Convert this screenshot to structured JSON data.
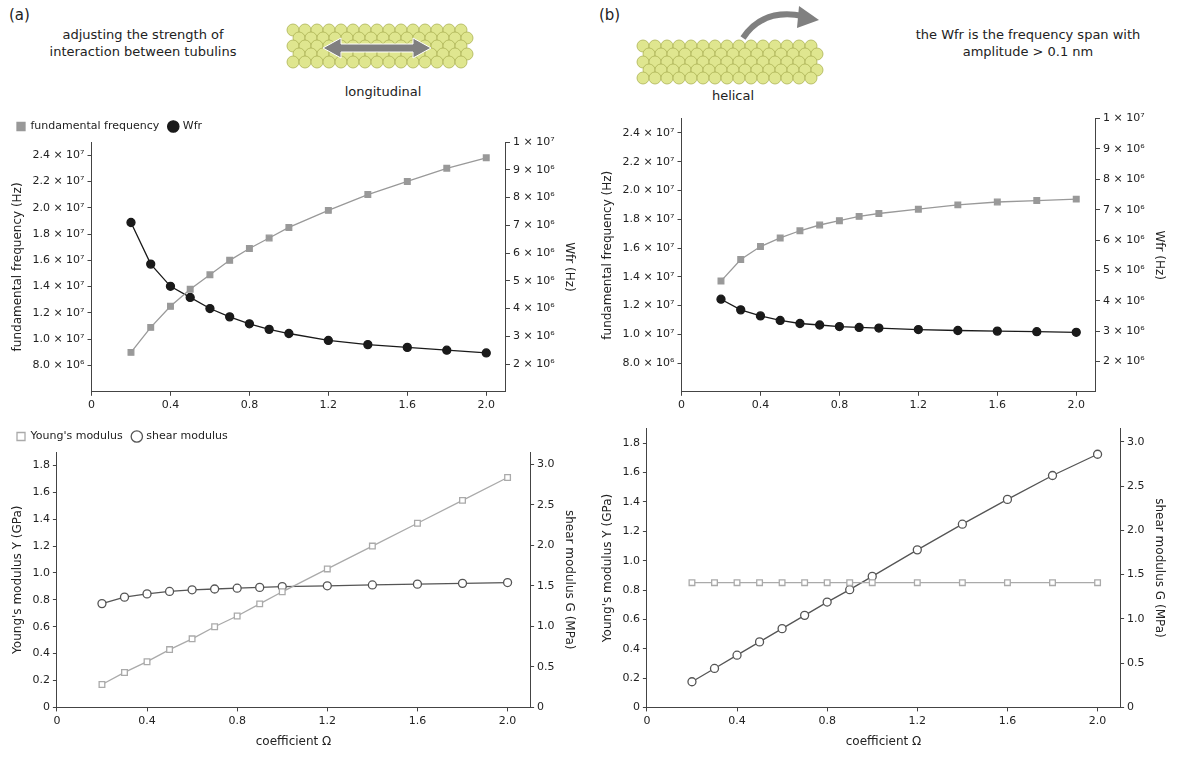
{
  "panels": [
    {
      "letter": "(a)",
      "caption": "adjusting the strength of interaction between tubulins",
      "label": "longitudinal"
    },
    {
      "letter": "(b)",
      "caption": "the Wfr is the frequency span with amplitude > 0.1 nm",
      "label": "helical"
    }
  ],
  "chart_data": [
    {
      "type": "line",
      "y_label": "fundamental frequency (Hz)",
      "y2_label": "Wfr (Hz)",
      "x": [
        0.2,
        0.3,
        0.4,
        0.5,
        0.6,
        0.7,
        0.8,
        0.9,
        1.0,
        1.2,
        1.4,
        1.6,
        1.8,
        2.0
      ],
      "xlim": [
        0,
        2.1
      ],
      "xticks": [
        0,
        0.4,
        0.8,
        1.2,
        1.6,
        {
          "value": 2,
          "label": "2.0"
        }
      ],
      "ylim": [
        6000000,
        25000000
      ],
      "yticks": [
        {
          "value": 8000000,
          "label": "8.0 × 10⁶"
        },
        {
          "value": 10000000,
          "label": "1.0 × 10⁷"
        },
        {
          "value": 12000000,
          "label": "1.2 × 10⁷"
        },
        {
          "value": 14000000,
          "label": "1.4 × 10⁷"
        },
        {
          "value": 16000000,
          "label": "1.6 × 10⁷"
        },
        {
          "value": 18000000,
          "label": "1.8 × 10⁷"
        },
        {
          "value": 20000000,
          "label": "2.0 × 10⁷"
        },
        {
          "value": 22000000,
          "label": "2.2 × 10⁷"
        },
        {
          "value": 24000000,
          "label": "2.4 × 10⁷"
        }
      ],
      "y2lim": [
        1000000,
        10000000
      ],
      "y2ticks": [
        {
          "value": 2000000,
          "label": "2 × 10⁶"
        },
        {
          "value": 3000000,
          "label": "3 × 10⁶"
        },
        {
          "value": 4000000,
          "label": "4 × 10⁶"
        },
        {
          "value": 5000000,
          "label": "5 × 10⁶"
        },
        {
          "value": 6000000,
          "label": "6 × 10⁶"
        },
        {
          "value": 7000000,
          "label": "7 × 10⁶"
        },
        {
          "value": 8000000,
          "label": "8 × 10⁶"
        },
        {
          "value": 9000000,
          "label": "9 × 10⁶"
        },
        {
          "value": 10000000,
          "label": "1 × 10⁷"
        }
      ],
      "grid": false,
      "legend": "top",
      "series": [
        {
          "name": "fundamental frequency",
          "color": "#999999",
          "marker": "square",
          "line_style": "solid",
          "values": [
            9000000,
            10900000,
            12500000,
            13800000,
            14900000,
            16000000,
            16900000,
            17700000,
            18500000,
            19800000,
            21000000,
            22000000,
            23000000,
            23800000
          ]
        },
        {
          "name": "Wfr",
          "color": "#1a1a1a",
          "marker": "circle",
          "line_style": "solid",
          "axis": "y2",
          "values": [
            7100000,
            5600000,
            4800000,
            4400000,
            4000000,
            3700000,
            3450000,
            3250000,
            3100000,
            2850000,
            2700000,
            2600000,
            2500000,
            2400000
          ]
        }
      ]
    },
    {
      "type": "line",
      "x_label": "coefficient Ω",
      "y_label": "Young's modulus Y (GPa)",
      "y2_label": "shear modulus G (MPa)",
      "x": [
        0.2,
        0.3,
        0.4,
        0.5,
        0.6,
        0.7,
        0.8,
        0.9,
        1.0,
        1.2,
        1.4,
        1.6,
        1.8,
        2.0
      ],
      "xlim": [
        0,
        2.1
      ],
      "xticks": [
        0,
        0.4,
        0.8,
        1.2,
        1.6,
        {
          "value": 2,
          "label": "2.0"
        }
      ],
      "ylim": [
        0,
        1.9
      ],
      "yticks": [
        0,
        0.2,
        0.4,
        0.6,
        0.8,
        {
          "value": 1,
          "label": "1.0"
        },
        1.2,
        1.4,
        1.6,
        1.8
      ],
      "y2lim": [
        0,
        3.15
      ],
      "y2ticks": [
        0,
        0.5,
        {
          "value": 1,
          "label": "1.0"
        },
        1.5,
        {
          "value": 2,
          "label": "2.0"
        },
        2.5,
        {
          "value": 3,
          "label": "3.0"
        }
      ],
      "grid": false,
      "legend": "top",
      "series": [
        {
          "name": "Young's modulus",
          "color": "#aaaaaa",
          "marker": "open_square",
          "line_style": "solid",
          "values": [
            0.17,
            0.26,
            0.34,
            0.43,
            0.51,
            0.6,
            0.68,
            0.77,
            0.86,
            1.03,
            1.2,
            1.37,
            1.54,
            1.71
          ]
        },
        {
          "name": "shear modulus",
          "color": "#555555",
          "marker": "open_circle",
          "line_style": "solid",
          "axis": "y2",
          "values": [
            1.28,
            1.36,
            1.4,
            1.43,
            1.45,
            1.46,
            1.47,
            1.48,
            1.49,
            1.5,
            1.51,
            1.52,
            1.53,
            1.54
          ]
        }
      ]
    },
    {
      "type": "line",
      "y_label": "fundamental frequency (Hz)",
      "y2_label": "Wfr (Hz)",
      "x": [
        0.2,
        0.3,
        0.4,
        0.5,
        0.6,
        0.7,
        0.8,
        0.9,
        1.0,
        1.2,
        1.4,
        1.6,
        1.8,
        2.0
      ],
      "xlim": [
        0,
        2.1
      ],
      "xticks": [
        0,
        0.4,
        0.8,
        1.2,
        1.6,
        {
          "value": 2,
          "label": "2.0"
        }
      ],
      "ylim": [
        6000000,
        25000000
      ],
      "yticks": [
        {
          "value": 8000000,
          "label": "8.0 × 10⁶"
        },
        {
          "value": 10000000,
          "label": "1.0 × 10⁷"
        },
        {
          "value": 12000000,
          "label": "1.2 × 10⁷"
        },
        {
          "value": 14000000,
          "label": "1.4 × 10⁷"
        },
        {
          "value": 16000000,
          "label": "1.6 × 10⁷"
        },
        {
          "value": 18000000,
          "label": "1.8 × 10⁷"
        },
        {
          "value": 20000000,
          "label": "2.0 × 10⁷"
        },
        {
          "value": 22000000,
          "label": "2.2 × 10⁷"
        },
        {
          "value": 24000000,
          "label": "2.4 × 10⁷"
        }
      ],
      "y2lim": [
        1000000,
        10000000
      ],
      "y2ticks": [
        {
          "value": 2000000,
          "label": "2 × 10⁶"
        },
        {
          "value": 3000000,
          "label": "3 × 10⁶"
        },
        {
          "value": 4000000,
          "label": "4 × 10⁶"
        },
        {
          "value": 5000000,
          "label": "5 × 10⁶"
        },
        {
          "value": 6000000,
          "label": "6 × 10⁶"
        },
        {
          "value": 7000000,
          "label": "7 × 10⁶"
        },
        {
          "value": 8000000,
          "label": "8 × 10⁶"
        },
        {
          "value": 9000000,
          "label": "9 × 10⁶"
        },
        {
          "value": 10000000,
          "label": "1 × 10⁷"
        }
      ],
      "grid": false,
      "series": [
        {
          "color": "#999999",
          "marker": "square",
          "line_style": "solid",
          "values": [
            13700000,
            15200000,
            16100000,
            16700000,
            17200000,
            17600000,
            17900000,
            18200000,
            18400000,
            18700000,
            19000000,
            19200000,
            19300000,
            19400000
          ]
        },
        {
          "color": "#1a1a1a",
          "marker": "circle",
          "line_style": "solid",
          "axis": "y2",
          "values": [
            4050000,
            3700000,
            3500000,
            3350000,
            3250000,
            3200000,
            3150000,
            3120000,
            3100000,
            3050000,
            3020000,
            3000000,
            2980000,
            2960000
          ]
        }
      ]
    },
    {
      "type": "line",
      "x_label": "coefficient Ω",
      "y_label": "Young's modulus Y (GPa)",
      "y2_label": "shear modulus G (MPa)",
      "x": [
        0.2,
        0.3,
        0.4,
        0.5,
        0.6,
        0.7,
        0.8,
        0.9,
        1.0,
        1.2,
        1.4,
        1.6,
        1.8,
        2.0
      ],
      "xlim": [
        0,
        2.1
      ],
      "xticks": [
        0,
        0.4,
        0.8,
        1.2,
        1.6,
        {
          "value": 2,
          "label": "2.0"
        }
      ],
      "ylim": [
        0,
        1.9
      ],
      "yticks": [
        0,
        0.2,
        0.4,
        0.6,
        0.8,
        {
          "value": 1,
          "label": "1.0"
        },
        1.2,
        1.4,
        1.6,
        1.8
      ],
      "y2lim": [
        0,
        3.15
      ],
      "y2ticks": [
        0,
        0.5,
        {
          "value": 1,
          "label": "1.0"
        },
        1.5,
        {
          "value": 2,
          "label": "2.0"
        },
        2.5,
        {
          "value": 3,
          "label": "3.0"
        }
      ],
      "grid": false,
      "series": [
        {
          "color": "#aaaaaa",
          "marker": "open_square",
          "line_style": "solid",
          "values": [
            0.85,
            0.85,
            0.85,
            0.85,
            0.85,
            0.85,
            0.85,
            0.85,
            0.85,
            0.85,
            0.85,
            0.85,
            0.85,
            0.85
          ]
        },
        {
          "color": "#555555",
          "marker": "open_circle",
          "line_style": "solid",
          "axis": "y2",
          "values": [
            0.29,
            0.44,
            0.59,
            0.74,
            0.89,
            1.04,
            1.19,
            1.33,
            1.48,
            1.78,
            2.07,
            2.35,
            2.62,
            2.86
          ]
        }
      ]
    }
  ]
}
